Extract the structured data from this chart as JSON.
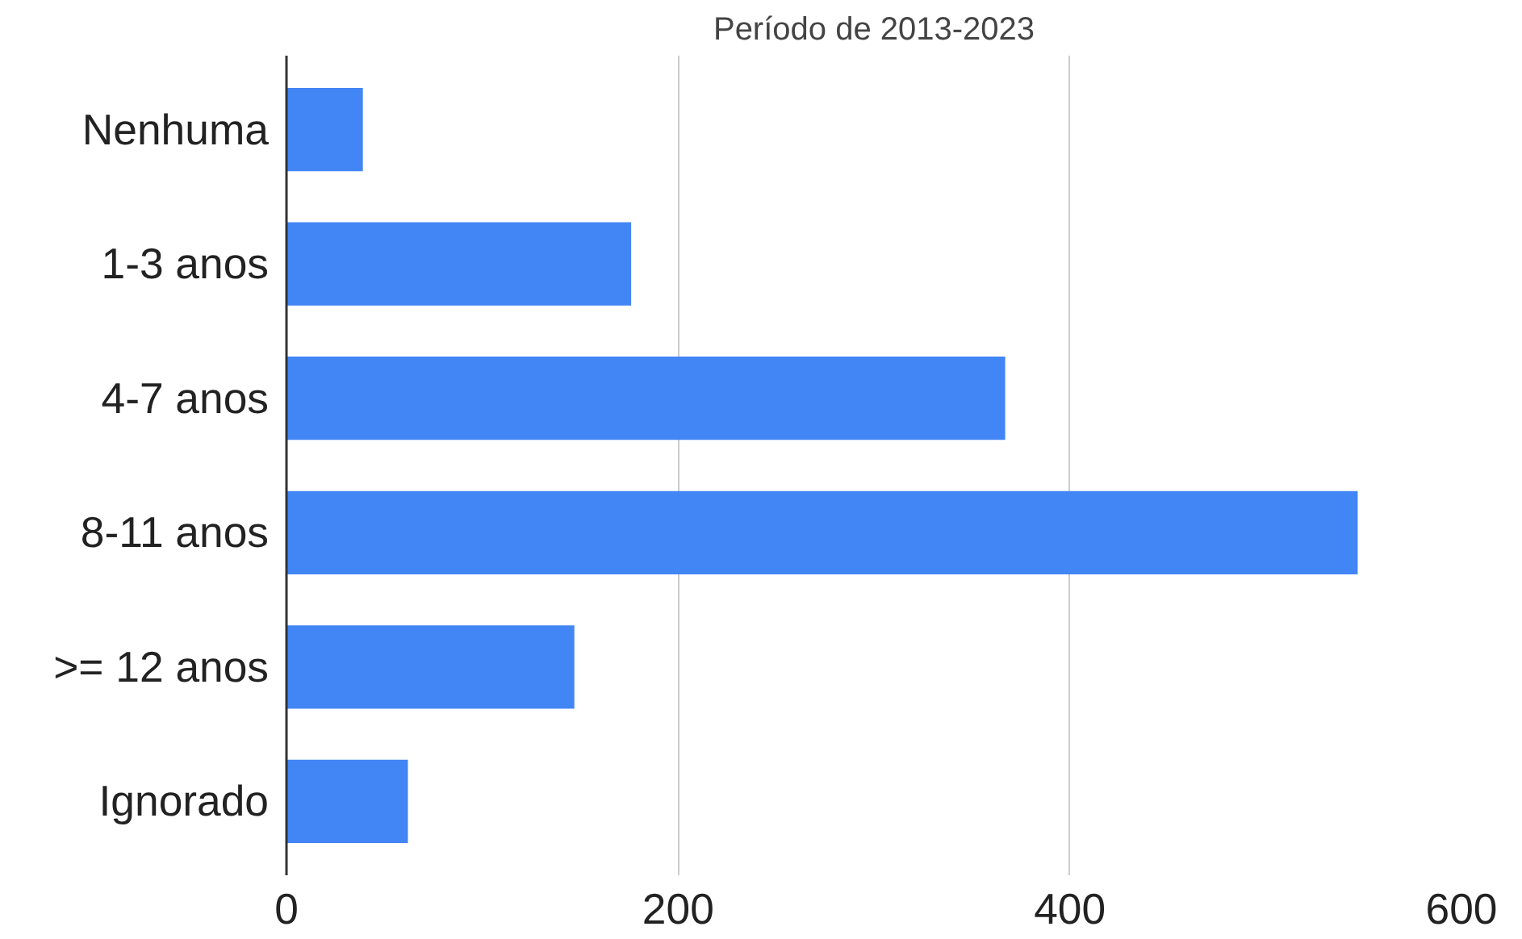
{
  "chart_data": {
    "type": "bar",
    "orientation": "horizontal",
    "title": "Período de 2013-2023",
    "categories": [
      "Nenhuma",
      "1-3 anos",
      "4-7 anos",
      "8-11 anos",
      ">= 12 anos",
      "Ignorado"
    ],
    "values": [
      39,
      176,
      367,
      547,
      147,
      62
    ],
    "color": "#4285f4",
    "xlim": [
      0,
      600
    ],
    "xticks": [
      0,
      200,
      400,
      600
    ],
    "grid": "x"
  }
}
